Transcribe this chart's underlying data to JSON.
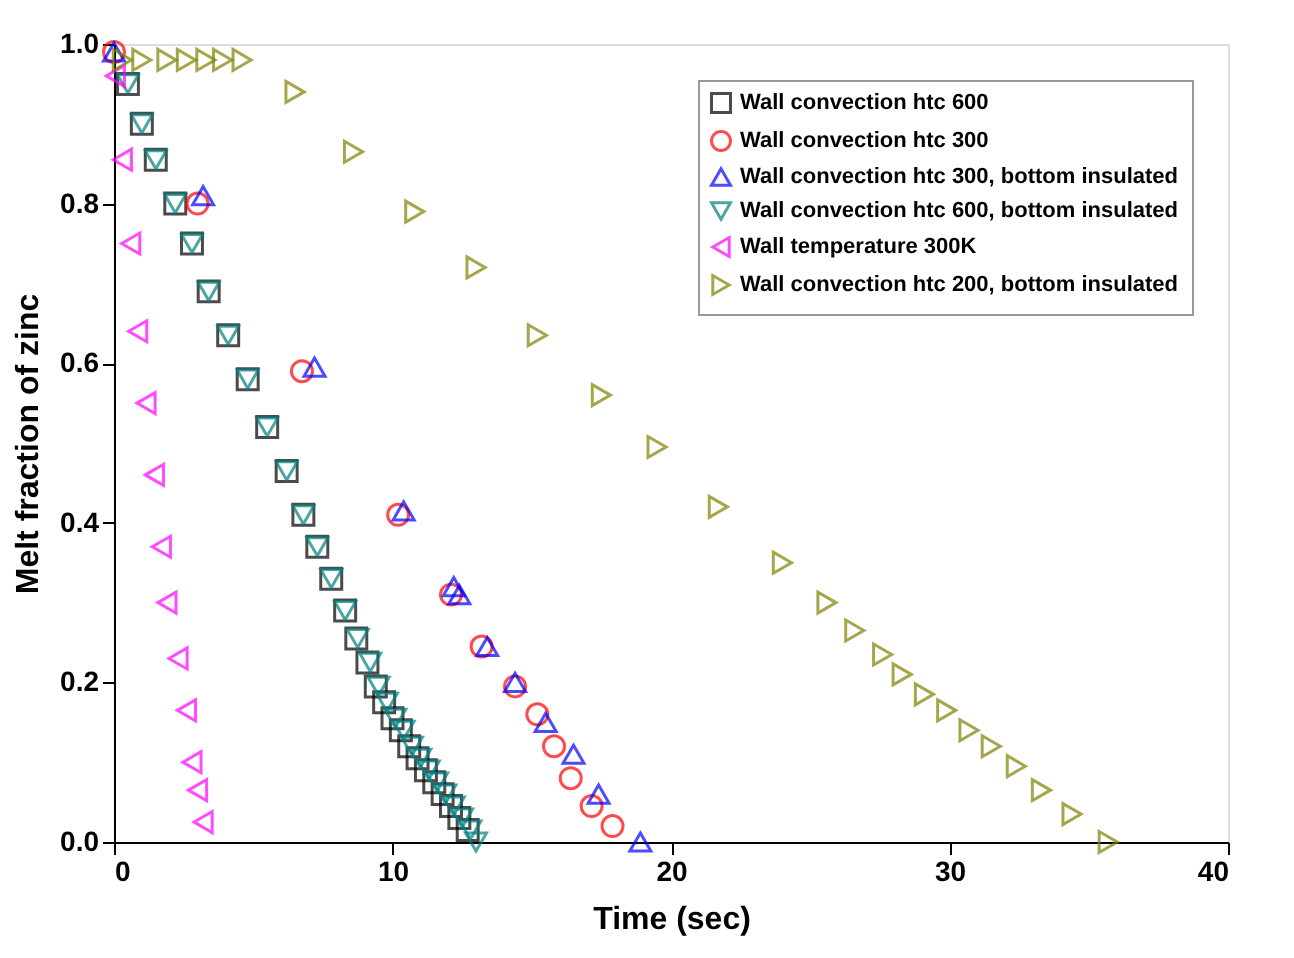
{
  "chart_data": {
    "type": "scatter",
    "xlabel": "Time (sec)",
    "ylabel": "Melt fraction of zinc",
    "xlim": [
      0,
      40
    ],
    "xticks": [
      0,
      10,
      20,
      30,
      40
    ],
    "ylim": [
      0,
      1.0
    ],
    "yticks": [
      {
        "value": 0,
        "label": "0.0"
      },
      0.2,
      0.4,
      0.6,
      0.8,
      {
        "value": 1,
        "label": "1.0"
      }
    ],
    "grid": false,
    "legend": "top right",
    "series": [
      {
        "name": "Wall convection htc 600",
        "color": "#000000",
        "marker": "square",
        "x": [
          0.5,
          1.0,
          1.5,
          2.2,
          2.8,
          3.4,
          4.1,
          4.8,
          5.5,
          6.2,
          6.8,
          7.3,
          7.8,
          8.3,
          8.7,
          9.1,
          9.4,
          9.7,
          10.0,
          10.3,
          10.6,
          10.9,
          11.2,
          11.5,
          11.8,
          12.1,
          12.4,
          12.7
        ],
        "values": [
          0.95,
          0.9,
          0.855,
          0.8,
          0.75,
          0.69,
          0.635,
          0.58,
          0.52,
          0.465,
          0.41,
          0.37,
          0.33,
          0.29,
          0.255,
          0.225,
          0.195,
          0.175,
          0.155,
          0.14,
          0.12,
          0.105,
          0.09,
          0.075,
          0.06,
          0.045,
          0.03,
          0.015
        ]
      },
      {
        "name": "Wall convection htc 300",
        "color": "#ff0000",
        "marker": "circle",
        "x": [
          0,
          3.0,
          6.75,
          10.2,
          12.1,
          13.2,
          14.4,
          15.2,
          15.8,
          16.4,
          17.15,
          17.9
        ],
        "values": [
          0.99,
          0.8,
          0.59,
          0.41,
          0.31,
          0.245,
          0.195,
          0.16,
          0.12,
          0.08,
          0.045,
          0.02
        ]
      },
      {
        "name": "Wall convection htc 300, bottom insulated",
        "color": "#0000ff",
        "marker": "triangle",
        "x": [
          0,
          3.2,
          7.2,
          10.4,
          12.2,
          12.4,
          13.4,
          14.4,
          15.5,
          16.5,
          17.4,
          18.9
        ],
        "values": [
          0.99,
          0.81,
          0.595,
          0.415,
          0.32,
          0.31,
          0.245,
          0.2,
          0.15,
          0.11,
          0.06,
          0.0
        ]
      },
      {
        "name": "Wall convection htc 600, bottom insulated",
        "color": "#008080",
        "marker": "triangle-down",
        "x": [
          0.5,
          1.0,
          1.5,
          2.2,
          2.8,
          3.4,
          4.1,
          4.8,
          5.5,
          6.2,
          6.8,
          7.3,
          7.8,
          8.3,
          8.75,
          9.2,
          9.5,
          9.8,
          10.1,
          10.4,
          10.7,
          11.0,
          11.3,
          11.6,
          11.9,
          12.2,
          12.5,
          12.8,
          13.0
        ],
        "values": [
          0.95,
          0.9,
          0.855,
          0.8,
          0.75,
          0.69,
          0.635,
          0.58,
          0.52,
          0.465,
          0.41,
          0.37,
          0.33,
          0.29,
          0.255,
          0.225,
          0.195,
          0.175,
          0.155,
          0.14,
          0.12,
          0.105,
          0.09,
          0.075,
          0.06,
          0.045,
          0.03,
          0.015,
          0.0
        ]
      },
      {
        "name": "Wall temperature 300K",
        "color": "#ff00ff",
        "marker": "triangle-left",
        "x": [
          0.05,
          0.3,
          0.6,
          0.85,
          1.15,
          1.45,
          1.7,
          1.9,
          2.3,
          2.6,
          2.8,
          3.0,
          3.2
        ],
        "values": [
          0.96,
          0.855,
          0.75,
          0.64,
          0.55,
          0.46,
          0.37,
          0.3,
          0.23,
          0.165,
          0.1,
          0.065,
          0.025
        ]
      },
      {
        "name": "Wall convection htc 200, bottom insulated",
        "color": "#808000",
        "marker": "triangle-right",
        "x": [
          0.3,
          1.0,
          1.9,
          2.6,
          3.3,
          3.9,
          4.6,
          6.5,
          8.6,
          10.8,
          13.0,
          15.2,
          17.5,
          19.5,
          21.7,
          24.0,
          25.6,
          26.6,
          27.6,
          28.3,
          29.1,
          29.9,
          30.7,
          31.5,
          32.4,
          33.3,
          34.4,
          35.7
        ],
        "values": [
          0.98,
          0.98,
          0.98,
          0.98,
          0.98,
          0.98,
          0.98,
          0.94,
          0.865,
          0.79,
          0.72,
          0.635,
          0.56,
          0.495,
          0.42,
          0.35,
          0.3,
          0.265,
          0.235,
          0.21,
          0.185,
          0.165,
          0.14,
          0.12,
          0.095,
          0.065,
          0.035,
          0.0
        ]
      }
    ]
  }
}
